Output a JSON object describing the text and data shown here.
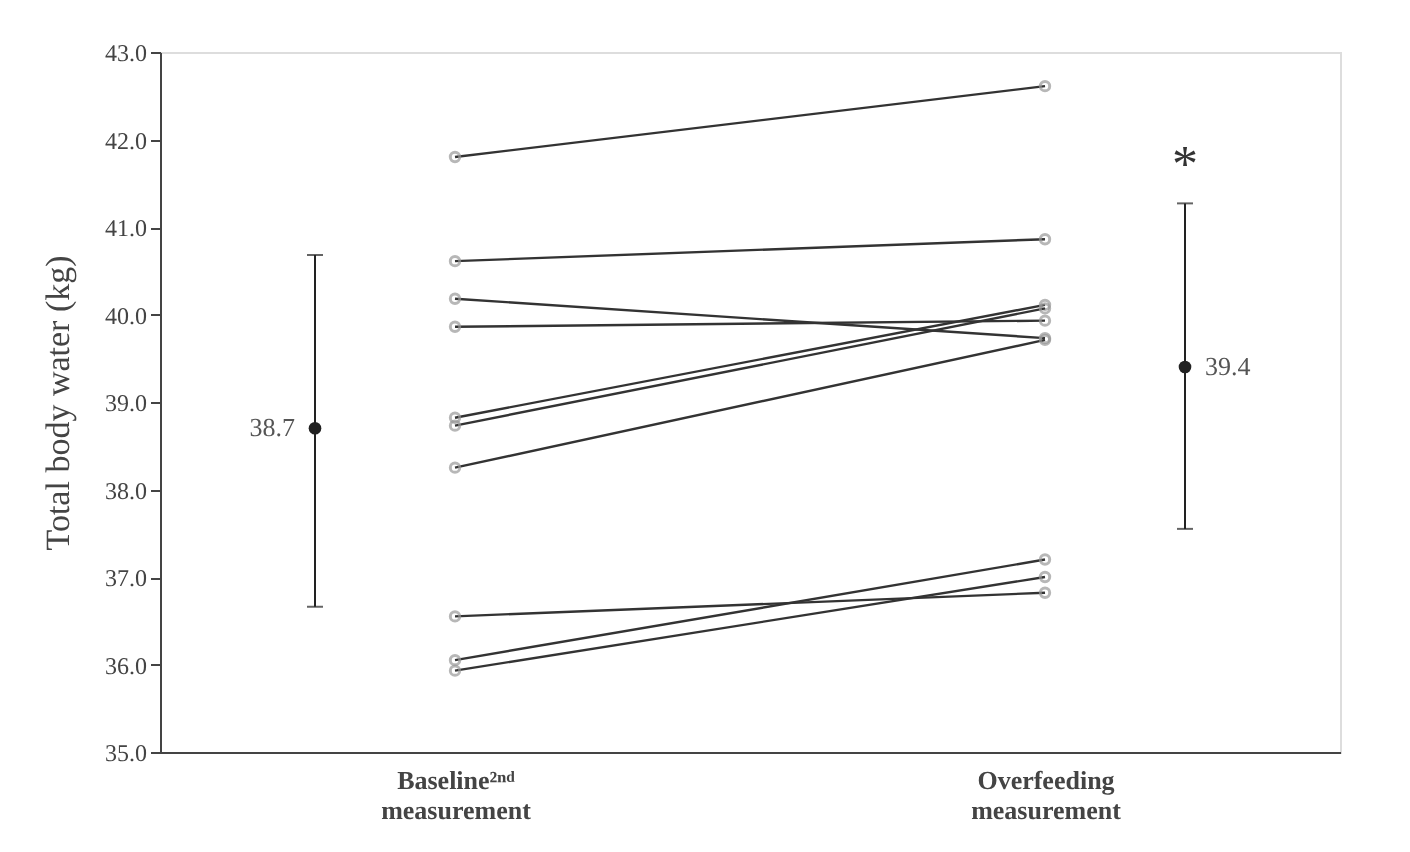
{
  "chart_data": {
    "type": "line",
    "ylabel": "Total body water (kg)",
    "categories": [
      "Baseline²ⁿᵈ measurement",
      "Overfeeding measurement"
    ],
    "ylim": [
      35,
      43
    ],
    "yticks": [
      {
        "value": 35,
        "label": "35.0"
      },
      {
        "value": 36,
        "label": "36.0"
      },
      {
        "value": 37,
        "label": "37.0"
      },
      {
        "value": 38,
        "label": "38.0"
      },
      {
        "value": 39,
        "label": "39.0"
      },
      {
        "value": 40,
        "label": "40.0"
      },
      {
        "value": 41,
        "label": "41.0"
      },
      {
        "value": 42,
        "label": "42.0"
      },
      {
        "value": 43,
        "label": "43.0"
      }
    ],
    "grid": false,
    "marker": "circle",
    "line_style": "solid",
    "series": [
      {
        "color": "#333333",
        "values": [
          41.8,
          42.61
        ]
      },
      {
        "color": "#333333",
        "values": [
          40.61,
          40.86
        ]
      },
      {
        "color": "#333333",
        "values": [
          40.18,
          39.73
        ]
      },
      {
        "color": "#333333",
        "values": [
          39.86,
          39.93
        ]
      },
      {
        "color": "#333333",
        "values": [
          38.82,
          40.11
        ]
      },
      {
        "color": "#333333",
        "values": [
          38.73,
          40.07
        ]
      },
      {
        "color": "#333333",
        "values": [
          38.25,
          39.71
        ]
      },
      {
        "color": "#333333",
        "values": [
          36.55,
          36.82
        ]
      },
      {
        "color": "#333333",
        "values": [
          36.05,
          37.2
        ]
      },
      {
        "color": "#333333",
        "values": [
          35.93,
          37.0
        ]
      },
      {
        "type": "scatter",
        "color": "#222222",
        "values": [
          38.7,
          39.4
        ],
        "errors": [
          [
            36.66,
            40.68
          ],
          [
            37.55,
            41.27
          ]
        ],
        "value_labels": [
          "38.7",
          "39.4"
        ]
      }
    ],
    "annotations": [
      "*"
    ]
  }
}
